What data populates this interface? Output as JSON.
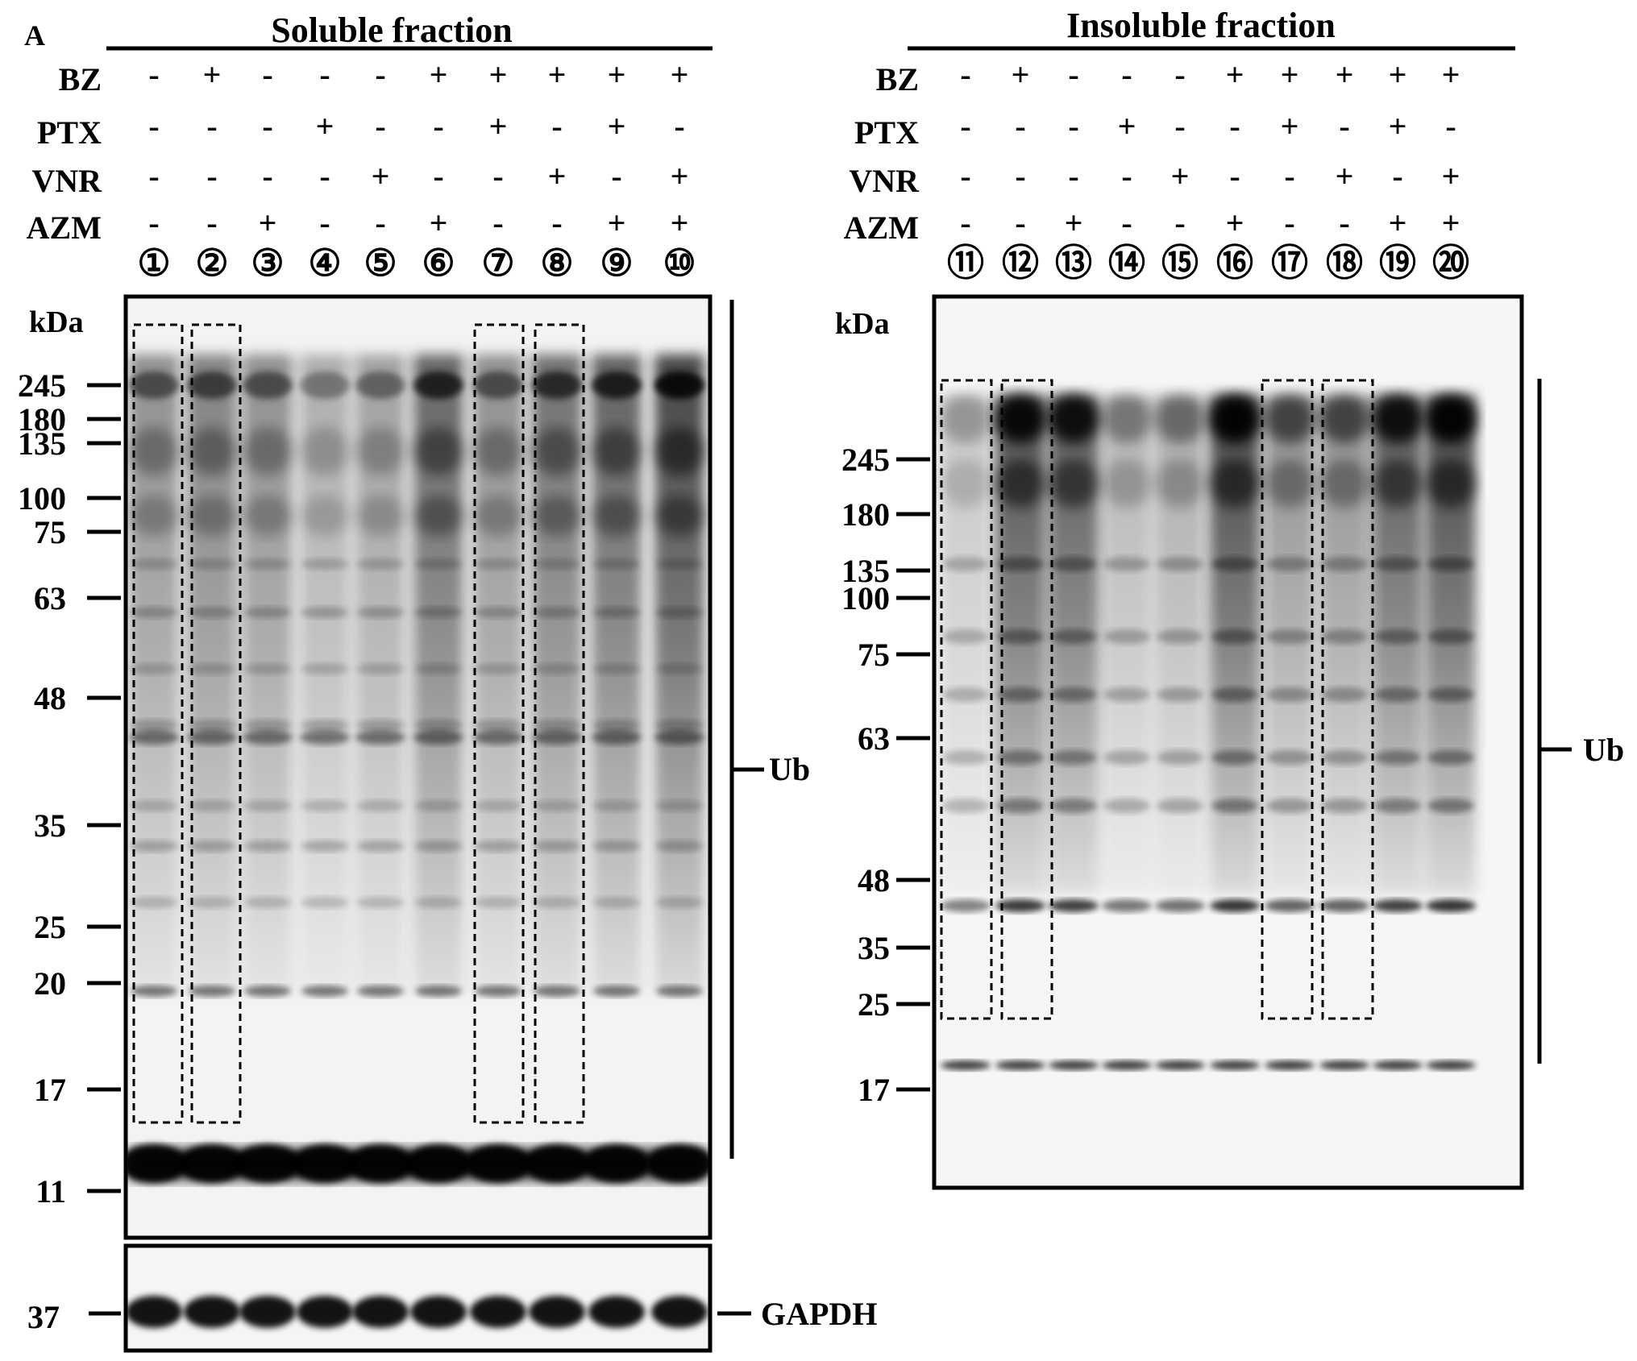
{
  "panel_label": "A",
  "kda_label": "kDa",
  "treatments": [
    "BZ",
    "PTX",
    "VNR",
    "AZM"
  ],
  "panels": [
    {
      "id": "soluble",
      "title": "Soluble fraction",
      "lanes": [
        "①",
        "②",
        "③",
        "④",
        "⑤",
        "⑥",
        "⑦",
        "⑧",
        "⑨",
        "⑩"
      ],
      "rows": [
        [
          "-",
          "+",
          "-",
          "-",
          "-",
          "+",
          "+",
          "+",
          "+",
          "+"
        ],
        [
          "-",
          "-",
          "-",
          "+",
          "-",
          "-",
          "+",
          "-",
          "+",
          "-"
        ],
        [
          "-",
          "-",
          "-",
          "-",
          "+",
          "-",
          "-",
          "+",
          "-",
          "+"
        ],
        [
          "-",
          "-",
          "+",
          "-",
          "-",
          "+",
          "-",
          "-",
          "+",
          "+"
        ]
      ],
      "markers": [
        "245",
        "180",
        "135",
        "100",
        "75",
        "63",
        "48",
        "35",
        "25",
        "20",
        "17",
        "11"
      ],
      "bracket_label": "Ub",
      "loading_label": "GAPDH",
      "loading_marker": "37"
    },
    {
      "id": "insoluble",
      "title": "Insoluble fraction",
      "lanes": [
        "⑪",
        "⑫",
        "⑬",
        "⑭",
        "⑮",
        "⑯",
        "⑰",
        "⑱",
        "⑲",
        "⑳"
      ],
      "rows": [
        [
          "-",
          "+",
          "-",
          "-",
          "-",
          "+",
          "+",
          "+",
          "+",
          "+"
        ],
        [
          "-",
          "-",
          "-",
          "+",
          "-",
          "-",
          "+",
          "-",
          "+",
          "-"
        ],
        [
          "-",
          "-",
          "-",
          "-",
          "+",
          "-",
          "-",
          "+",
          "-",
          "+"
        ],
        [
          "-",
          "-",
          "+",
          "-",
          "-",
          "+",
          "-",
          "-",
          "+",
          "+"
        ]
      ],
      "markers": [
        "245",
        "180",
        "135",
        "100",
        "75",
        "63",
        "48",
        "35",
        "25",
        "17"
      ],
      "bracket_label": "Ub"
    }
  ]
}
